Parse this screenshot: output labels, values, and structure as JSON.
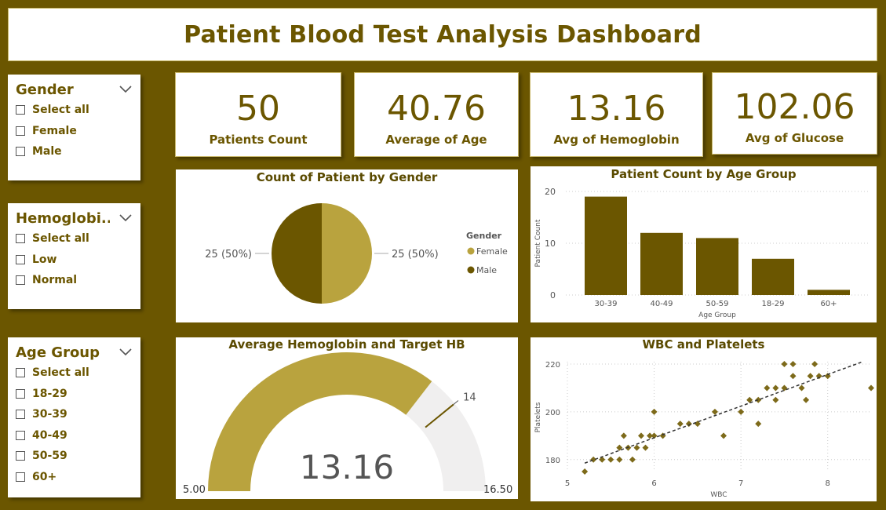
{
  "header": {
    "title": "Patient Blood Test Analysis Dashboard"
  },
  "slicers": [
    {
      "title": "Gender",
      "options": [
        "Select all",
        "Female",
        "Male"
      ]
    },
    {
      "title": "Hemoglobi...",
      "options": [
        "Select all",
        "Low",
        "Normal"
      ]
    },
    {
      "title": "Age Group",
      "options": [
        "Select all",
        "18-29",
        "30-39",
        "40-49",
        "50-59",
        "60+"
      ]
    }
  ],
  "kpis": [
    {
      "value": "50",
      "label": "Patients Count"
    },
    {
      "value": "40.76",
      "label": "Average of Age"
    },
    {
      "value": "13.16",
      "label": "Avg of Hemoglobin"
    },
    {
      "value": "102.06",
      "label": "Avg of Glucose"
    }
  ],
  "colors": {
    "accent": "#6b5600",
    "light_accent": "#b9a33e",
    "background": "#6b5600",
    "gauge_track": "#f0efef"
  },
  "chart_data": [
    {
      "type": "pie",
      "title": "Count of Patient by Gender",
      "legend_title": "Gender",
      "legend_position": "right",
      "categories": [
        "Female",
        "Male"
      ],
      "values": [
        25,
        25
      ],
      "labels": [
        "25 (50%)",
        "25 (50%)"
      ],
      "colors": [
        "#b9a33e",
        "#6b5600"
      ]
    },
    {
      "type": "bar",
      "title": "Patient Count by Age Group",
      "xlabel": "Age Group",
      "ylabel": "Patient Count",
      "categories": [
        "30-39",
        "40-49",
        "50-59",
        "18-29",
        "60+"
      ],
      "values": [
        19,
        12,
        11,
        7,
        1
      ],
      "ylim": [
        0,
        20
      ],
      "yticks": [
        0,
        10,
        20
      ],
      "grid": true
    },
    {
      "type": "gauge",
      "title": "Average Hemoglobin and Target HB",
      "value": 13.16,
      "value_label": "13.16",
      "min": 5.0,
      "max": 16.5,
      "target": 14,
      "min_label": "5.00",
      "max_label": "16.50",
      "target_label": "14"
    },
    {
      "type": "scatter",
      "title": "WBC and Platelets",
      "xlabel": "WBC",
      "ylabel": "Platelets",
      "xlim": [
        5,
        8.5
      ],
      "ylim": [
        175,
        221
      ],
      "xticks": [
        5,
        6,
        7,
        8
      ],
      "yticks": [
        180,
        200,
        220
      ],
      "trendline": true,
      "points": [
        [
          5.2,
          175
        ],
        [
          5.3,
          180
        ],
        [
          5.4,
          180
        ],
        [
          5.5,
          180
        ],
        [
          5.6,
          180
        ],
        [
          5.6,
          185
        ],
        [
          5.65,
          190
        ],
        [
          5.7,
          185
        ],
        [
          5.75,
          180
        ],
        [
          5.8,
          185
        ],
        [
          5.85,
          190
        ],
        [
          5.9,
          185
        ],
        [
          5.95,
          190
        ],
        [
          6.0,
          200
        ],
        [
          6.0,
          190
        ],
        [
          6.1,
          190
        ],
        [
          6.3,
          195
        ],
        [
          6.4,
          195
        ],
        [
          6.5,
          195
        ],
        [
          6.7,
          200
        ],
        [
          6.8,
          190
        ],
        [
          7.0,
          200
        ],
        [
          7.1,
          205
        ],
        [
          7.2,
          195
        ],
        [
          7.2,
          205
        ],
        [
          7.3,
          210
        ],
        [
          7.4,
          210
        ],
        [
          7.4,
          205
        ],
        [
          7.5,
          210
        ],
        [
          7.5,
          220
        ],
        [
          7.6,
          215
        ],
        [
          7.6,
          220
        ],
        [
          7.7,
          210
        ],
        [
          7.75,
          205
        ],
        [
          7.8,
          215
        ],
        [
          7.85,
          220
        ],
        [
          7.9,
          215
        ],
        [
          8.0,
          215
        ],
        [
          8.5,
          210
        ]
      ]
    }
  ]
}
